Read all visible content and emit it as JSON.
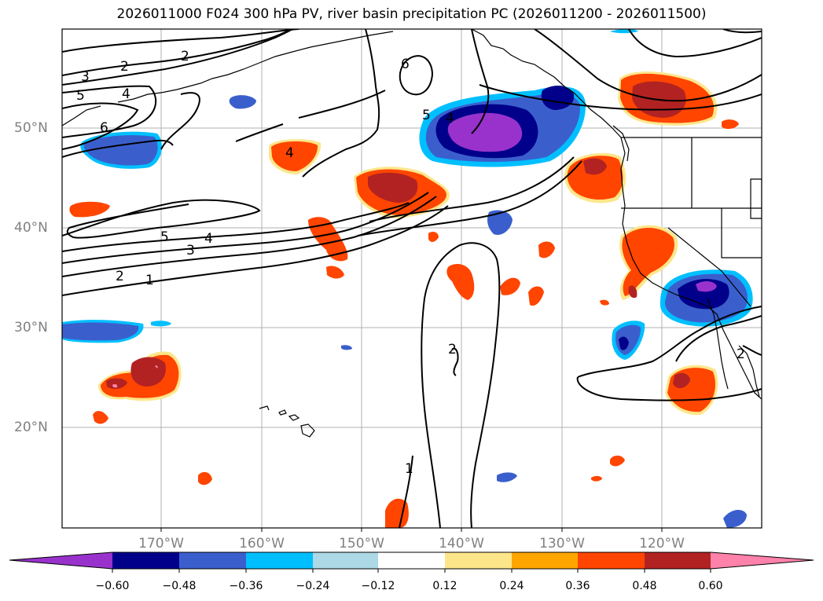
{
  "title": "2026011000 F024 300 hPa PV, river basin precipitation PC (2026011200 - 2026011500)",
  "latitude_labels": [
    "50°N",
    "40°N",
    "30°N",
    "20°N"
  ],
  "longitude_labels": [
    "170°W",
    "160°W",
    "150°W",
    "140°W",
    "130°W",
    "120°W"
  ],
  "colorbar": {
    "ticks": [
      "−0.60",
      "−0.48",
      "−0.36",
      "−0.24",
      "−0.12",
      "0.12",
      "0.24",
      "0.36",
      "0.48",
      "0.60"
    ],
    "colors": [
      "#9932cc",
      "#00008b",
      "#3a5fcd",
      "#00bfff",
      "#add8e6",
      "#ffffff",
      "#fde68a",
      "#ffa500",
      "#ff4500",
      "#b22222",
      "#ff82ab"
    ]
  },
  "pv_contour_labels": [
    "1",
    "2",
    "3",
    "4",
    "5",
    "6"
  ],
  "contour_color": "#000000",
  "grid_color": "#b0b0b0"
}
